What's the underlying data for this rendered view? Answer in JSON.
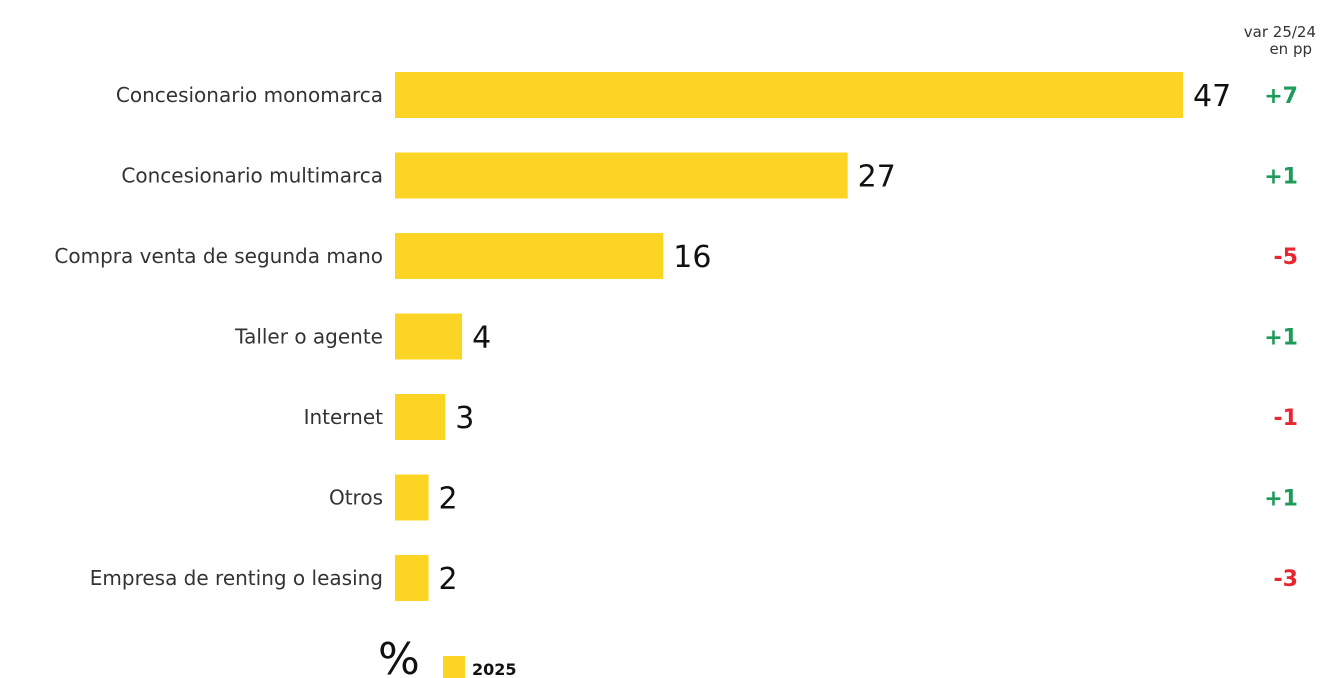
{
  "chart_data": {
    "type": "bar",
    "orientation": "horizontal",
    "categories": [
      "Concesionario monomarca",
      "Concesionario multimarca",
      "Compra venta de segunda mano",
      "Taller o agente",
      "Internet",
      "Otros",
      "Empresa de renting o leasing"
    ],
    "series": [
      {
        "name": "2025",
        "values": [
          47,
          27,
          16,
          4,
          3,
          2,
          2
        ],
        "color": "#FCD423"
      }
    ],
    "variation": {
      "header_line1": "var 25/24",
      "header_line2": "en pp",
      "values": [
        "+7",
        "+1",
        "-5",
        "+1",
        "-1",
        "+1",
        "-3"
      ]
    },
    "unit": "%",
    "legend": {
      "label": "2025",
      "placement": "bottom-left"
    },
    "xlim": [
      0,
      47
    ],
    "grid": false,
    "colors": {
      "bar": "#FCD423",
      "positive": "#1E9A5A",
      "negative": "#E8262F"
    }
  }
}
